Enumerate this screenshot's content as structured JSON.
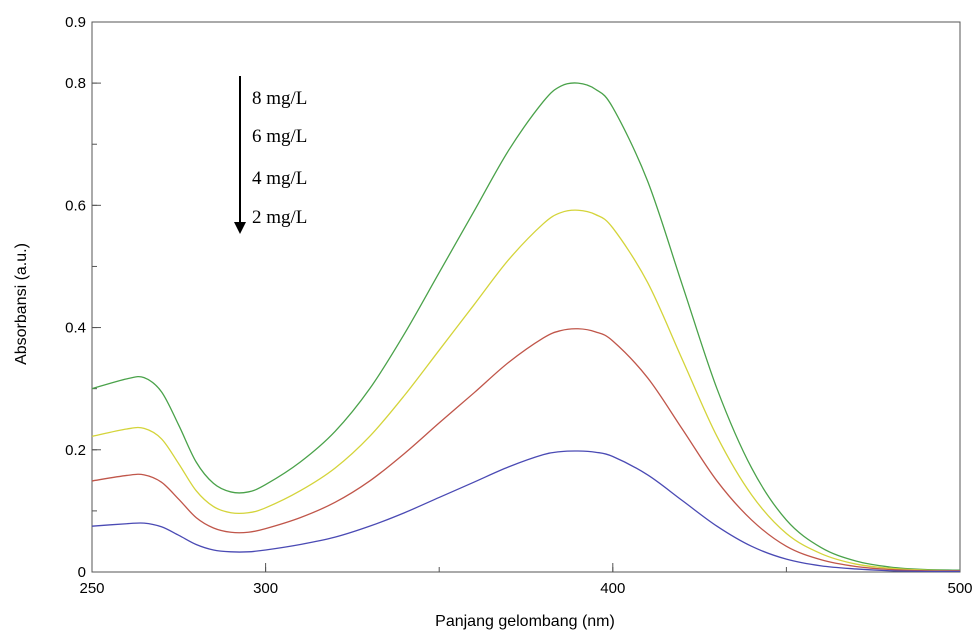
{
  "chart_data": {
    "type": "line",
    "title": "",
    "xlabel": "Panjang gelombang (nm)",
    "ylabel": "Absorbansi (a.u.)",
    "xlim": [
      250,
      500
    ],
    "ylim": [
      0,
      0.9
    ],
    "x_ticks": [
      250,
      300,
      400,
      500
    ],
    "x_tick_labels": [
      "250",
      "300",
      "400",
      "500"
    ],
    "y_ticks": [
      0,
      0.2,
      0.4,
      0.6,
      0.8,
      0.9
    ],
    "y_tick_labels": [
      "0",
      "0.2",
      "0.4",
      "0.6",
      "0.8",
      "0.9"
    ],
    "grid": false,
    "legend": {
      "placement": "top-left",
      "arrow_direction": "down",
      "entries": [
        "8 mg/L",
        "6 mg/L",
        "4 mg/L",
        "2 mg/L"
      ]
    },
    "series": [
      {
        "label": "8 mg/L",
        "color": "#4aa24a",
        "x": [
          250,
          260,
          265,
          270,
          275,
          280,
          285,
          290,
          295,
          300,
          310,
          320,
          330,
          340,
          350,
          360,
          370,
          380,
          385,
          390,
          395,
          400,
          410,
          420,
          430,
          440,
          450,
          460,
          470,
          480,
          490,
          500
        ],
        "y": [
          0.3,
          0.316,
          0.318,
          0.295,
          0.24,
          0.18,
          0.145,
          0.131,
          0.131,
          0.143,
          0.18,
          0.23,
          0.3,
          0.39,
          0.49,
          0.59,
          0.69,
          0.77,
          0.795,
          0.8,
          0.79,
          0.76,
          0.64,
          0.47,
          0.3,
          0.17,
          0.085,
          0.04,
          0.018,
          0.008,
          0.004,
          0.003
        ]
      },
      {
        "label": "6 mg/L",
        "color": "#d4d43a",
        "x": [
          250,
          260,
          265,
          270,
          275,
          280,
          285,
          290,
          295,
          300,
          310,
          320,
          330,
          340,
          350,
          360,
          370,
          380,
          385,
          390,
          395,
          400,
          410,
          420,
          430,
          440,
          450,
          460,
          470,
          480,
          490,
          500
        ],
        "y": [
          0.222,
          0.234,
          0.235,
          0.218,
          0.177,
          0.133,
          0.107,
          0.097,
          0.097,
          0.105,
          0.133,
          0.17,
          0.222,
          0.289,
          0.363,
          0.437,
          0.511,
          0.57,
          0.588,
          0.592,
          0.585,
          0.563,
          0.474,
          0.348,
          0.222,
          0.126,
          0.063,
          0.03,
          0.013,
          0.006,
          0.003,
          0.002
        ]
      },
      {
        "label": "4 mg/L",
        "color": "#c0564a",
        "x": [
          250,
          260,
          265,
          270,
          275,
          280,
          285,
          290,
          295,
          300,
          310,
          320,
          330,
          340,
          350,
          360,
          370,
          380,
          385,
          390,
          395,
          400,
          410,
          420,
          430,
          440,
          450,
          460,
          470,
          480,
          490,
          500
        ],
        "y": [
          0.149,
          0.158,
          0.159,
          0.147,
          0.119,
          0.089,
          0.072,
          0.065,
          0.065,
          0.071,
          0.089,
          0.114,
          0.149,
          0.194,
          0.244,
          0.293,
          0.343,
          0.383,
          0.395,
          0.398,
          0.393,
          0.378,
          0.318,
          0.234,
          0.149,
          0.085,
          0.042,
          0.02,
          0.009,
          0.004,
          0.002,
          0.002
        ]
      },
      {
        "label": "2 mg/L",
        "color": "#4a4ab4",
        "x": [
          250,
          260,
          265,
          270,
          275,
          280,
          285,
          290,
          295,
          300,
          310,
          320,
          330,
          340,
          350,
          360,
          370,
          380,
          385,
          390,
          395,
          400,
          410,
          420,
          430,
          440,
          450,
          460,
          470,
          480,
          490,
          500
        ],
        "y": [
          0.075,
          0.079,
          0.08,
          0.074,
          0.06,
          0.045,
          0.036,
          0.033,
          0.033,
          0.036,
          0.045,
          0.057,
          0.075,
          0.097,
          0.122,
          0.147,
          0.172,
          0.192,
          0.197,
          0.198,
          0.196,
          0.189,
          0.159,
          0.117,
          0.075,
          0.042,
          0.021,
          0.01,
          0.005,
          0.002,
          0.001,
          0.001
        ]
      }
    ]
  }
}
